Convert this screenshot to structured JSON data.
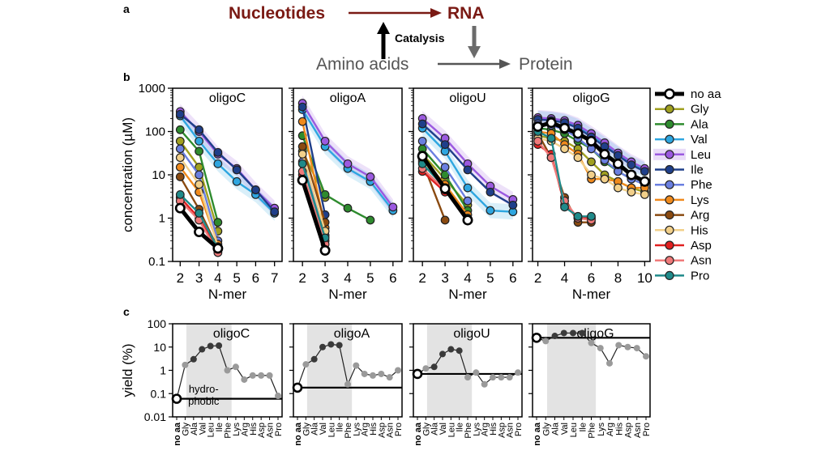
{
  "panel_a": {
    "label": "a",
    "nucleotides": "Nucleotides",
    "rna": "RNA",
    "catalysis": "Catalysis",
    "amino_acids": "Amino acids",
    "protein": "Protein",
    "dark_red": "#7a1a14",
    "gray": "#6b6b6b"
  },
  "panel_b_label": "b",
  "panel_c_label": "c",
  "series_styles": [
    {
      "name": "no aa",
      "color": "#ffffff",
      "edge": "#000000"
    },
    {
      "name": "Gly",
      "color": "#a0a020",
      "edge": "#222222"
    },
    {
      "name": "Ala",
      "color": "#2e8b2e",
      "edge": "#222222"
    },
    {
      "name": "Val",
      "color": "#2ea6e0",
      "edge": "#222222"
    },
    {
      "name": "Leu",
      "color": "#9b59e0",
      "edge": "#222222"
    },
    {
      "name": "Ile",
      "color": "#1f3f8a",
      "edge": "#222222"
    },
    {
      "name": "Phe",
      "color": "#6a7fe0",
      "edge": "#222222"
    },
    {
      "name": "Lys",
      "color": "#f08a1c",
      "edge": "#222222"
    },
    {
      "name": "Arg",
      "color": "#8a4a10",
      "edge": "#222222"
    },
    {
      "name": "His",
      "color": "#f2d08a",
      "edge": "#222222"
    },
    {
      "name": "Asp",
      "color": "#e02020",
      "edge": "#222222"
    },
    {
      "name": "Asn",
      "color": "#f07a7a",
      "edge": "#222222"
    },
    {
      "name": "Pro",
      "color": "#1f8a8a",
      "edge": "#222222"
    }
  ],
  "chart_data": [
    {
      "type": "line",
      "panel": "b",
      "title": "oligoC",
      "ylabel": "concentration (µM)",
      "xlabel": "N-mer",
      "yscale": "log",
      "ylim": [
        0.1,
        1000
      ],
      "xlim": [
        1.6,
        7.4
      ],
      "xticks": [
        2,
        3,
        4,
        5,
        6,
        7
      ],
      "yticks": [
        0.1,
        1,
        10,
        100,
        1000
      ],
      "ytick_labels": [
        "0.1",
        "1",
        "10",
        "100",
        "1000"
      ],
      "series": [
        {
          "name": "Gly",
          "x": [
            2,
            3,
            4
          ],
          "values": [
            60,
            15,
            0.5
          ]
        },
        {
          "name": "Ala",
          "x": [
            2,
            3,
            4
          ],
          "values": [
            110,
            35,
            0.8
          ]
        },
        {
          "name": "Val",
          "x": [
            2,
            3,
            4,
            5,
            6,
            7
          ],
          "values": [
            230,
            60,
            18,
            7,
            3.5,
            1.3
          ]
        },
        {
          "name": "Leu",
          "x": [
            2,
            3,
            4,
            5,
            6,
            7
          ],
          "values": [
            290,
            100,
            30,
            14,
            4.5,
            1.7
          ]
        },
        {
          "name": "Ile",
          "x": [
            2,
            3,
            4,
            5,
            6,
            7
          ],
          "values": [
            250,
            110,
            33,
            13,
            4.5,
            1.4
          ]
        },
        {
          "name": "Phe",
          "x": [
            2,
            3,
            4
          ],
          "values": [
            40,
            10,
            0.3
          ]
        },
        {
          "name": "Lys",
          "x": [
            2,
            3,
            4
          ],
          "values": [
            15,
            4,
            0.25
          ]
        },
        {
          "name": "Arg",
          "x": [
            2,
            3,
            4
          ],
          "values": [
            9,
            1.6,
            0.2
          ]
        },
        {
          "name": "His",
          "x": [
            2,
            3,
            4
          ],
          "values": [
            25,
            6,
            0.22
          ]
        },
        {
          "name": "Asp",
          "x": [
            2,
            3,
            4
          ],
          "values": [
            3,
            1.0,
            0.18
          ]
        },
        {
          "name": "Asn",
          "x": [
            2,
            3,
            4
          ],
          "values": [
            2.5,
            0.9,
            0.16
          ]
        },
        {
          "name": "Pro",
          "x": [
            2,
            3,
            4
          ],
          "values": [
            3.5,
            1.3,
            0.2
          ]
        },
        {
          "name": "no aa",
          "x": [
            2,
            3,
            4
          ],
          "values": [
            1.7,
            0.48,
            0.2
          ]
        }
      ]
    },
    {
      "type": "line",
      "panel": "b",
      "title": "oligoA",
      "xlabel": "N-mer",
      "yscale": "log",
      "ylim": [
        0.1,
        1000
      ],
      "xlim": [
        1.6,
        6.4
      ],
      "xticks": [
        2,
        3,
        4,
        5,
        6
      ],
      "series": [
        {
          "name": "Gly",
          "x": [
            2,
            3
          ],
          "values": [
            35,
            3
          ]
        },
        {
          "name": "Ala",
          "x": [
            2,
            3,
            4,
            5
          ],
          "values": [
            80,
            3.5,
            1.7,
            0.9
          ]
        },
        {
          "name": "Val",
          "x": [
            2,
            3,
            4,
            5,
            6
          ],
          "values": [
            320,
            45,
            14,
            7,
            1.5
          ]
        },
        {
          "name": "Leu",
          "x": [
            2,
            3,
            4,
            5,
            6
          ],
          "values": [
            450,
            60,
            18,
            9,
            1.8
          ]
        },
        {
          "name": "Ile",
          "x": [
            2,
            3
          ],
          "values": [
            370,
            1.2
          ]
        },
        {
          "name": "Phe",
          "x": [
            2,
            3
          ],
          "values": [
            20,
            0.4
          ]
        },
        {
          "name": "Lys",
          "x": [
            2,
            3
          ],
          "values": [
            170,
            0.6
          ]
        },
        {
          "name": "Arg",
          "x": [
            2,
            3
          ],
          "values": [
            45,
            0.8
          ]
        },
        {
          "name": "His",
          "x": [
            2,
            3
          ],
          "values": [
            30,
            0.5
          ]
        },
        {
          "name": "Asp",
          "x": [
            2,
            3
          ],
          "values": [
            10,
            0.3
          ]
        },
        {
          "name": "Asn",
          "x": [
            2,
            3
          ],
          "values": [
            12,
            0.25
          ]
        },
        {
          "name": "Pro",
          "x": [
            2,
            3
          ],
          "values": [
            18,
            0.35
          ]
        },
        {
          "name": "no aa",
          "x": [
            2,
            3
          ],
          "values": [
            7.5,
            0.18
          ]
        }
      ]
    },
    {
      "type": "line",
      "panel": "b",
      "title": "oligoU",
      "xlabel": "N-mer",
      "yscale": "log",
      "ylim": [
        0.1,
        1000
      ],
      "xlim": [
        1.6,
        6.4
      ],
      "xticks": [
        2,
        3,
        4,
        5,
        6
      ],
      "series": [
        {
          "name": "Gly",
          "x": [
            2,
            3,
            4
          ],
          "values": [
            30,
            8,
            2
          ]
        },
        {
          "name": "Ala",
          "x": [
            2,
            3,
            4
          ],
          "values": [
            40,
            10,
            1.5
          ]
        },
        {
          "name": "Val",
          "x": [
            2,
            3,
            4,
            5,
            6
          ],
          "values": [
            120,
            35,
            5,
            1.5,
            1.4
          ]
        },
        {
          "name": "Leu",
          "x": [
            2,
            3,
            4,
            5,
            6
          ],
          "values": [
            200,
            70,
            18,
            5.5,
            2.7
          ]
        },
        {
          "name": "Ile",
          "x": [
            2,
            3,
            4,
            5,
            6
          ],
          "values": [
            150,
            50,
            13,
            4,
            2.0
          ]
        },
        {
          "name": "Phe",
          "x": [
            2,
            3,
            4
          ],
          "values": [
            60,
            15,
            2.5
          ]
        },
        {
          "name": "Lys",
          "x": [
            2,
            3,
            4
          ],
          "values": [
            25,
            6,
            1.2
          ]
        },
        {
          "name": "Arg",
          "x": [
            2,
            3
          ],
          "values": [
            20,
            0.9
          ]
        },
        {
          "name": "His",
          "x": [
            2,
            3,
            4
          ],
          "values": [
            22,
            5,
            1
          ]
        },
        {
          "name": "Asp",
          "x": [
            2,
            3
          ],
          "values": [
            12,
            4
          ]
        },
        {
          "name": "Asn",
          "x": [
            2,
            3
          ],
          "values": [
            14,
            4.5
          ]
        },
        {
          "name": "Pro",
          "x": [
            2,
            3,
            4
          ],
          "values": [
            18,
            5,
            1
          ]
        },
        {
          "name": "no aa",
          "x": [
            2,
            3,
            4
          ],
          "values": [
            27,
            4.8,
            0.9
          ]
        }
      ]
    },
    {
      "type": "line",
      "panel": "b",
      "title": "oligoG",
      "xlabel": "N-mer",
      "yscale": "log",
      "ylim": [
        0.1,
        1000
      ],
      "xlim": [
        1.6,
        10.4
      ],
      "xticks": [
        2,
        4,
        6,
        8,
        10
      ],
      "series": [
        {
          "name": "Gly",
          "x": [
            2,
            3,
            4,
            5,
            6,
            7,
            8,
            9,
            10
          ],
          "values": [
            80,
            70,
            60,
            40,
            20,
            10,
            7,
            5,
            4
          ]
        },
        {
          "name": "Ala",
          "x": [
            2,
            3,
            4,
            5,
            6,
            7,
            8,
            9,
            10
          ],
          "values": [
            120,
            110,
            90,
            60,
            40,
            20,
            12,
            8,
            6
          ]
        },
        {
          "name": "Val",
          "x": [
            2,
            3,
            4,
            5,
            6,
            7,
            8,
            9,
            10
          ],
          "values": [
            200,
            190,
            170,
            130,
            80,
            50,
            30,
            18,
            13
          ]
        },
        {
          "name": "Leu",
          "x": [
            2,
            3,
            4,
            5,
            6,
            7,
            8,
            9,
            10
          ],
          "values": [
            210,
            200,
            180,
            140,
            90,
            55,
            32,
            20,
            14
          ]
        },
        {
          "name": "Ile",
          "x": [
            2,
            3,
            4,
            5,
            6,
            7,
            8,
            9,
            10
          ],
          "values": [
            190,
            180,
            160,
            120,
            75,
            45,
            28,
            17,
            12
          ]
        },
        {
          "name": "Phe",
          "x": [
            2,
            3,
            4,
            5,
            6,
            7,
            8,
            9,
            10
          ],
          "values": [
            150,
            140,
            110,
            70,
            40,
            22,
            12,
            8,
            6
          ]
        },
        {
          "name": "Lys",
          "x": [
            2,
            3,
            4,
            5,
            6,
            7,
            8,
            9,
            10
          ],
          "values": [
            100,
            90,
            50,
            30,
            8,
            8,
            7,
            5,
            5
          ]
        },
        {
          "name": "Arg",
          "x": [
            2,
            3,
            4,
            5,
            6
          ],
          "values": [
            90,
            25,
            3,
            0.8,
            0.8
          ]
        },
        {
          "name": "His",
          "x": [
            2,
            3,
            4,
            5,
            6,
            7,
            8,
            9,
            10
          ],
          "values": [
            70,
            60,
            40,
            25,
            10,
            8,
            5,
            4,
            3.5
          ]
        },
        {
          "name": "Asp",
          "x": [
            2,
            3,
            4,
            5,
            6
          ],
          "values": [
            50,
            30,
            2,
            1,
            1
          ]
        },
        {
          "name": "Asn",
          "x": [
            2,
            3,
            4,
            5,
            6
          ],
          "values": [
            60,
            25,
            2.5,
            1,
            0.9
          ]
        },
        {
          "name": "Pro",
          "x": [
            2,
            3,
            4,
            5,
            6
          ],
          "values": [
            100,
            70,
            1.8,
            1.1,
            1.1
          ]
        },
        {
          "name": "no aa",
          "x": [
            2,
            3,
            4,
            5,
            6,
            7,
            8,
            9,
            10
          ],
          "values": [
            130,
            160,
            120,
            90,
            60,
            30,
            18,
            10,
            7
          ]
        }
      ]
    },
    {
      "type": "line",
      "panel": "c",
      "title": "oligoC",
      "ylabel": "yield (%)",
      "yscale": "log",
      "ylim": [
        0.01,
        100
      ],
      "yticks": [
        0.01,
        0.1,
        1,
        10,
        100
      ],
      "ytick_labels": [
        "0.01",
        "0.1",
        "1",
        "10",
        "100"
      ],
      "categories": [
        "no aa",
        "Gly",
        "Ala",
        "Val",
        "Leu",
        "Ile",
        "Phe",
        "Lys",
        "Arg",
        "His",
        "Asp",
        "Asn",
        "Pro"
      ],
      "values": [
        0.06,
        1.7,
        3,
        8,
        11,
        11.5,
        1.0,
        1.4,
        0.4,
        0.6,
        0.6,
        0.6,
        0.08
      ],
      "baseline": 0.06,
      "shaded": [
        "Gly",
        "Phe"
      ],
      "annotation": "hydro-\nphobic"
    },
    {
      "type": "line",
      "panel": "c",
      "title": "oligoA",
      "yscale": "log",
      "ylim": [
        0.01,
        100
      ],
      "categories": [
        "no aa",
        "Gly",
        "Ala",
        "Val",
        "Leu",
        "Ile",
        "Phe",
        "Lys",
        "Arg",
        "His",
        "Asp",
        "Asn",
        "Pro"
      ],
      "values": [
        0.18,
        1.8,
        3,
        10,
        13,
        12,
        0.25,
        1.6,
        0.7,
        0.6,
        0.7,
        0.5,
        1.0
      ],
      "baseline": 0.18,
      "shaded": [
        "Gly",
        "Phe"
      ]
    },
    {
      "type": "line",
      "panel": "c",
      "title": "oligoU",
      "yscale": "log",
      "ylim": [
        0.01,
        100
      ],
      "categories": [
        "no aa",
        "Gly",
        "Ala",
        "Val",
        "Leu",
        "Ile",
        "Phe",
        "Lys",
        "Arg",
        "His",
        "Asp",
        "Asn",
        "Pro"
      ],
      "values": [
        0.7,
        1.2,
        1.4,
        5,
        8,
        7,
        0.5,
        0.8,
        0.25,
        0.5,
        0.5,
        0.5,
        0.8
      ],
      "baseline": 0.7,
      "shaded": [
        "Gly",
        "Phe"
      ]
    },
    {
      "type": "line",
      "panel": "c",
      "title": "oligoG",
      "yscale": "log",
      "ylim": [
        0.01,
        100
      ],
      "categories": [
        "no aa",
        "Gly",
        "Ala",
        "Val",
        "Leu",
        "Ile",
        "Phe",
        "Lys",
        "Arg",
        "His",
        "Asp",
        "Asn",
        "Pro"
      ],
      "values": [
        25,
        18,
        30,
        40,
        40,
        40,
        15,
        9,
        2,
        12,
        10,
        9,
        4
      ],
      "baseline": 25,
      "shaded": [
        "Gly",
        "Phe"
      ]
    }
  ]
}
